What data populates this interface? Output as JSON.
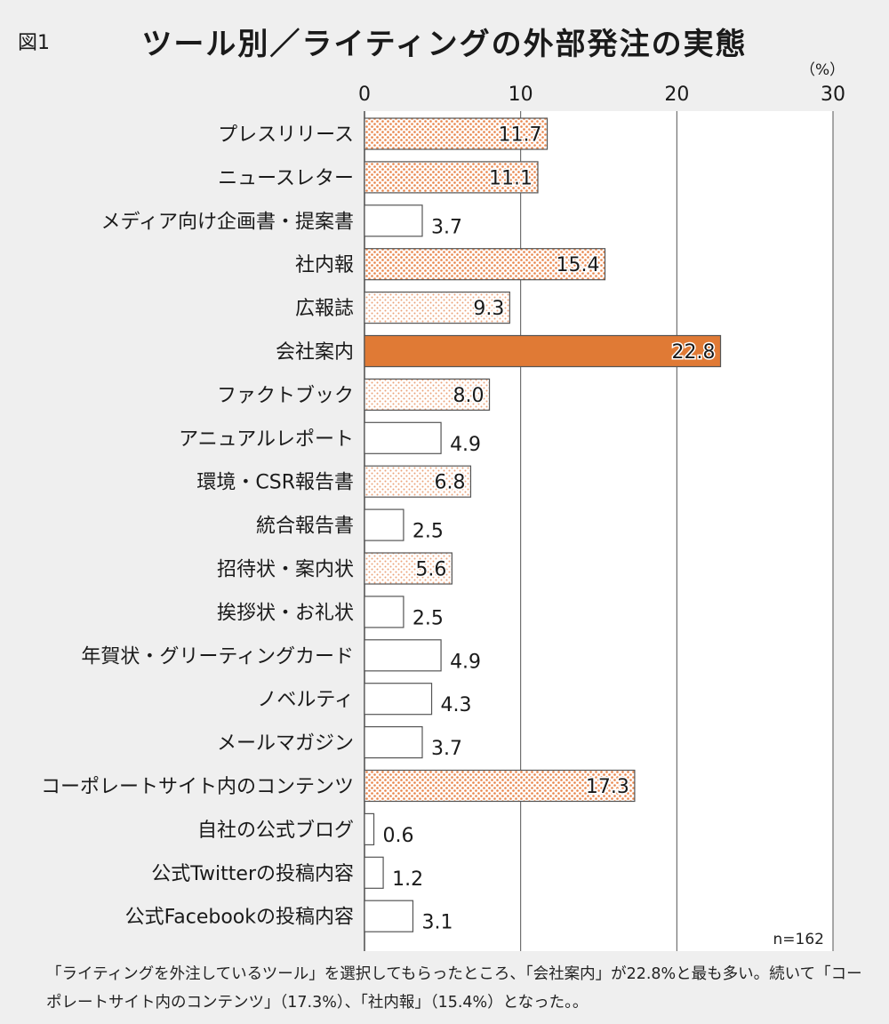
{
  "figure_label": "図1",
  "note": "「ライティングを外注しているツール」を選択してもらったところ、「会社案内」が22.8%と最も多い。続いて「コーポレートサイト内のコンテンツ」（17.3%）、「社内報」（15.4%）となった。。",
  "colors": {
    "highlight": "#e07a35",
    "dot_dense": "#e8854a",
    "dot_light": "#eba27a",
    "bar_stroke": "#555555",
    "grid": "#555555",
    "plot_bg": "#ffffff"
  },
  "chart_data": {
    "type": "bar",
    "orientation": "horizontal",
    "title": "ツール別／ライティングの外部発注の実態",
    "unit": "（%）",
    "sample_note": "n=162",
    "xlim": [
      0,
      30
    ],
    "xticks": [
      "0",
      "10",
      "20",
      "30"
    ],
    "grid": true,
    "categories": [
      "プレスリリース",
      "ニュースレター",
      "メディア向け企画書・提案書",
      "社内報",
      "広報誌",
      "会社案内",
      "ファクトブック",
      "アニュアルレポート",
      "環境・CSR報告書",
      "統合報告書",
      "招待状・案内状",
      "挨拶状・お礼状",
      "年賀状・グリーティングカード",
      "ノベルティ",
      "メールマガジン",
      "コーポレートサイト内のコンテンツ",
      "自社の公式ブログ",
      "公式Twitterの投稿内容",
      "公式Facebookの投稿内容"
    ],
    "values": [
      11.7,
      11.1,
      3.7,
      15.4,
      9.3,
      22.8,
      8.0,
      4.9,
      6.8,
      2.5,
      5.6,
      2.5,
      4.9,
      4.3,
      3.7,
      17.3,
      0.6,
      1.2,
      3.1
    ],
    "value_labels": [
      "11.7",
      "11.1",
      "3.7",
      "15.4",
      "9.3",
      "22.8",
      "8.0",
      "4.9",
      "6.8",
      "2.5",
      "5.6",
      "2.5",
      "4.9",
      "4.3",
      "3.7",
      "17.3",
      "0.6",
      "1.2",
      "3.1"
    ]
  }
}
